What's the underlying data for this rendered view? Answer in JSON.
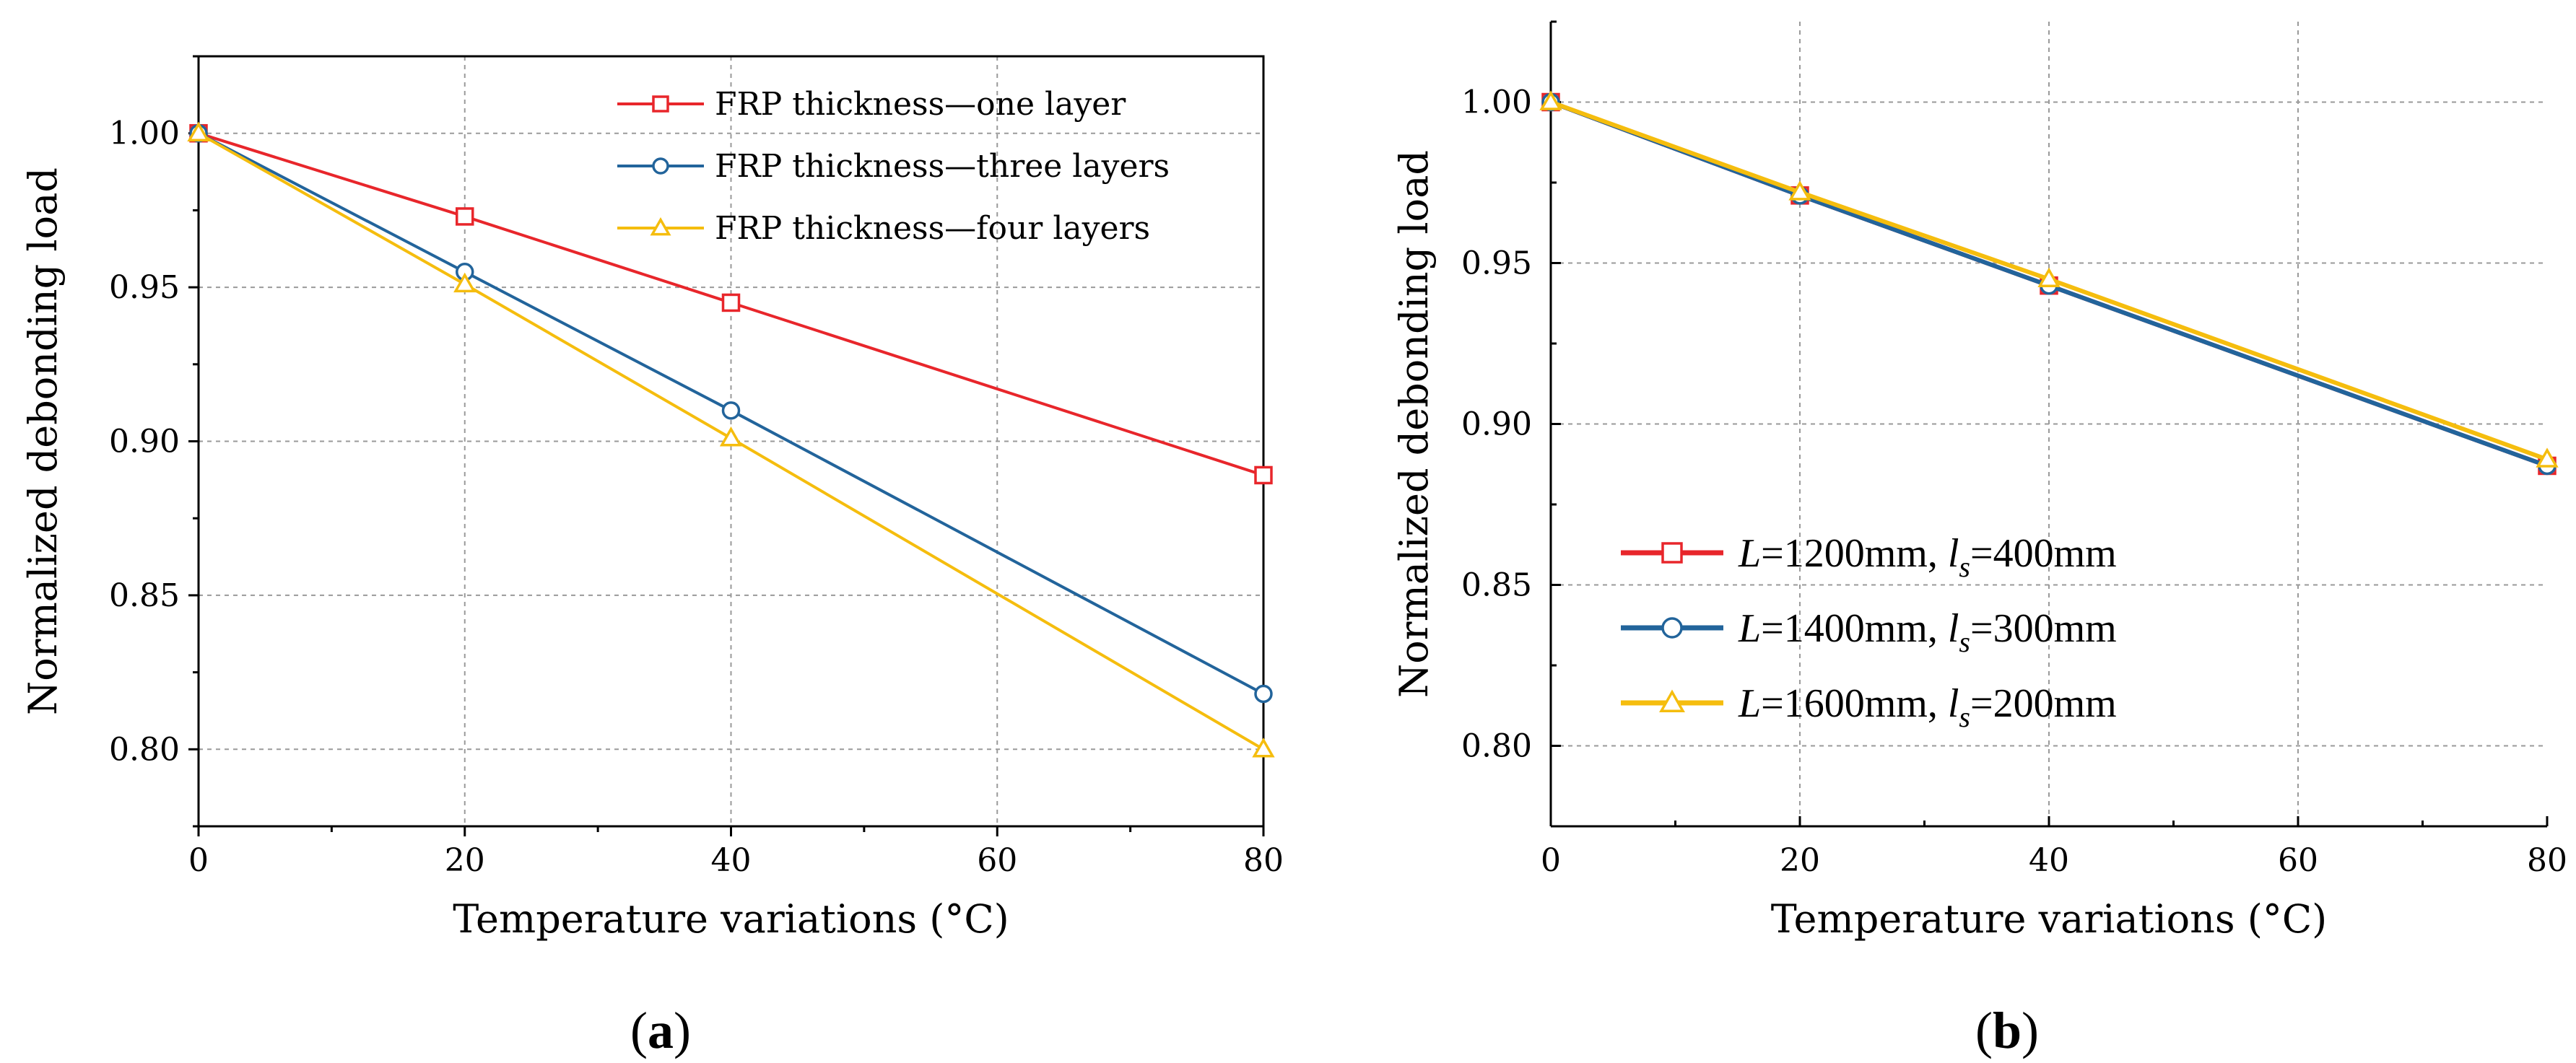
{
  "chart_data": [
    {
      "type": "line",
      "panel": "a",
      "xlabel": "Temperature variations (°C)",
      "ylabel": "Normalized debonding load",
      "xlim": [
        0,
        80
      ],
      "ylim": [
        0.775,
        1.025
      ],
      "xticks": [
        0,
        20,
        40,
        60,
        80
      ],
      "yticks": [
        0.8,
        0.85,
        0.9,
        0.95,
        1.0
      ],
      "ytick_labels": [
        "0.80",
        "0.85",
        "0.90",
        "0.95",
        "1.00"
      ],
      "grid": true,
      "legend_position": "top-right",
      "x": [
        0,
        20,
        40,
        80
      ],
      "series": [
        {
          "name": "FRP thickness—one layer",
          "color": "#e8262b",
          "marker": "square",
          "values": [
            1.0,
            0.973,
            0.945,
            0.889
          ]
        },
        {
          "name": "FRP thickness—three layers",
          "color": "#22649b",
          "marker": "circle",
          "values": [
            1.0,
            0.955,
            0.91,
            0.818
          ]
        },
        {
          "name": "FRP thickness—four layers",
          "color": "#f5bd0e",
          "marker": "triangle",
          "values": [
            1.0,
            0.951,
            0.901,
            0.8
          ]
        }
      ],
      "label": {
        "open": "(",
        "letter": "a",
        "close": ")"
      }
    },
    {
      "type": "line",
      "panel": "b",
      "xlabel": "Temperature variations (°C)",
      "ylabel": "Normalized debonding load",
      "xlim": [
        0,
        80
      ],
      "ylim": [
        0.775,
        1.025
      ],
      "xticks": [
        0,
        20,
        40,
        60,
        80
      ],
      "yticks": [
        0.8,
        0.85,
        0.9,
        0.95,
        1.0
      ],
      "ytick_labels": [
        "0.80",
        "0.85",
        "0.90",
        "0.95",
        "1.00"
      ],
      "grid": true,
      "legend_position": "bottom-left",
      "x": [
        0,
        20,
        40,
        80
      ],
      "series": [
        {
          "name": "L=1200mm, ls=400mm",
          "L": "L",
          "L_val": "=1200mm, ",
          "l": "l",
          "sub": "s",
          "l_val": "=400mm",
          "color": "#e8262b",
          "marker": "square",
          "values": [
            1.0,
            0.971,
            0.943,
            0.887
          ]
        },
        {
          "name": "L=1400mm, ls=300mm",
          "L": "L",
          "L_val": "=1400mm, ",
          "l": "l",
          "sub": "s",
          "l_val": "=300mm",
          "color": "#22649b",
          "marker": "circle",
          "values": [
            1.0,
            0.971,
            0.943,
            0.887
          ]
        },
        {
          "name": "L=1600mm, ls=200mm",
          "L": "L",
          "L_val": "=1600mm, ",
          "l": "l",
          "sub": "s",
          "l_val": "=200mm",
          "color": "#f5bd0e",
          "marker": "triangle",
          "values": [
            1.0,
            0.972,
            0.945,
            0.889
          ]
        }
      ],
      "label": {
        "open": "(",
        "letter": "b",
        "close": ")"
      }
    }
  ]
}
